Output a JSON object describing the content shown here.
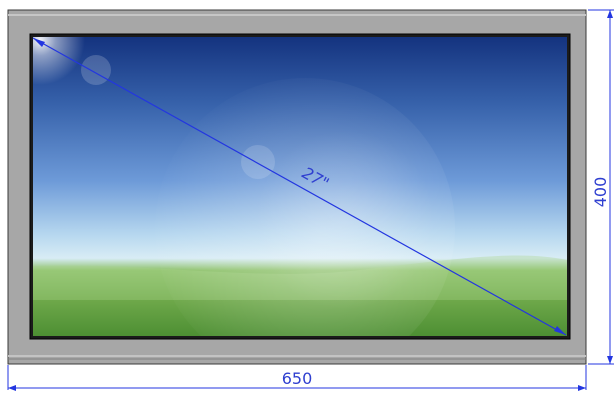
{
  "diagram": {
    "diagonal_label": "27\"",
    "width_label": "650",
    "height_label": "400"
  },
  "colors": {
    "dimension_line": "#2336e0",
    "bezel": "#a6a6a6",
    "sky_top": "#14337f",
    "sky_mid": "#6b98d7",
    "grass": "#6ea84a"
  }
}
